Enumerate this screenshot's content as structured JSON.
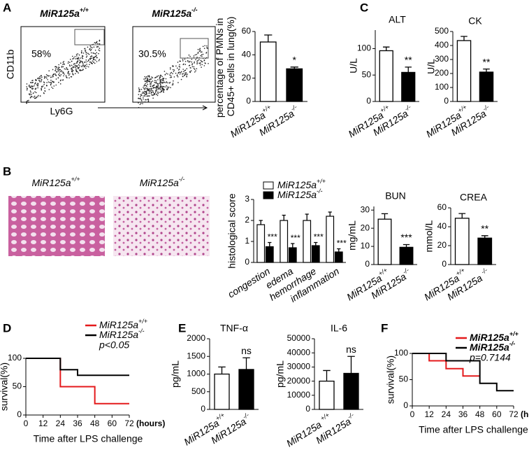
{
  "flow": {
    "panel": "A",
    "plots": [
      {
        "title": "MiR125a+/+",
        "gate": "58%"
      },
      {
        "title": "MiR125a-/-",
        "gate": "30.5%"
      }
    ],
    "ylabel": "CD11b",
    "xlabel": "Ly6G"
  },
  "histology": {
    "panel": "B",
    "images": [
      {
        "title": "MiR125a+/+"
      },
      {
        "title": "MiR125a-/-"
      }
    ]
  },
  "chart_data": [
    {
      "type": "bar",
      "ylabel": "percentage of PMNs in CD45+ cells in lung(%)",
      "categories": [
        "MiR125a+/+",
        "MiR125a-/-"
      ],
      "values": [
        51,
        28
      ],
      "errors": [
        6,
        1.5
      ],
      "colors": [
        "#ffffff",
        "#000000"
      ],
      "annotations": [
        null,
        "*"
      ],
      "ylim": [
        0,
        60
      ],
      "yticks": [
        0,
        20,
        40,
        60
      ]
    },
    {
      "type": "bar",
      "panel": "C",
      "title": "ALT",
      "ylabel": "U/L",
      "categories": [
        "MiR125a+/+",
        "MiR125a-/-"
      ],
      "values": [
        96,
        55
      ],
      "errors": [
        7,
        10
      ],
      "colors": [
        "#ffffff",
        "#000000"
      ],
      "annotations": [
        null,
        "**"
      ],
      "ylim": [
        0,
        135
      ],
      "yticks": [
        0,
        50,
        100
      ]
    },
    {
      "type": "bar",
      "title": "CK",
      "ylabel": "U/L",
      "categories": [
        "MiR125a+/+",
        "MiR125a-/-"
      ],
      "values": [
        435,
        210
      ],
      "errors": [
        30,
        22
      ],
      "colors": [
        "#ffffff",
        "#000000"
      ],
      "annotations": [
        null,
        "**"
      ],
      "ylim": [
        0,
        500
      ],
      "yticks": [
        0,
        100,
        200,
        300,
        400,
        500
      ]
    },
    {
      "type": "grouped_bar",
      "ylabel": "histological score",
      "categories": [
        "congestion",
        "edema",
        "hemorrhage",
        "inflammation"
      ],
      "series": [
        {
          "name": "MiR125a+/+",
          "color": "#ffffff",
          "values": [
            1.8,
            2.0,
            2.0,
            2.2
          ],
          "errors": [
            0.2,
            0.25,
            0.3,
            0.2
          ]
        },
        {
          "name": "MiR125a-/-",
          "color": "#000000",
          "values": [
            0.75,
            0.7,
            0.8,
            0.5
          ],
          "errors": [
            0.2,
            0.2,
            0.15,
            0.15
          ],
          "annotations": [
            "***",
            "***",
            "***",
            "***"
          ]
        }
      ],
      "ylim": [
        0,
        3
      ],
      "yticks": [
        0,
        1,
        2,
        3
      ]
    },
    {
      "type": "bar",
      "title": "BUN",
      "ylabel": "mg/mL",
      "categories": [
        "MiR125a+/+",
        "MiR125a-/-"
      ],
      "values": [
        25,
        9.5
      ],
      "errors": [
        3,
        1.5
      ],
      "colors": [
        "#ffffff",
        "#000000"
      ],
      "annotations": [
        null,
        "***"
      ],
      "ylim": [
        0,
        32
      ],
      "yticks": [
        0,
        10,
        20,
        30
      ]
    },
    {
      "type": "bar",
      "title": "CREA",
      "ylabel": "mmol/L",
      "categories": [
        "MiR125a+/+",
        "MiR125a -/-"
      ],
      "values": [
        49,
        28
      ],
      "errors": [
        5,
        2.5
      ],
      "colors": [
        "#ffffff",
        "#000000"
      ],
      "annotations": [
        null,
        "**"
      ],
      "ylim": [
        0,
        60
      ],
      "yticks": [
        0,
        20,
        40,
        60
      ]
    },
    {
      "type": "step",
      "panel": "D",
      "ylabel": "survival(%)",
      "xlabel": "Time after LPS challenge",
      "xunit": "(hours)",
      "series": [
        {
          "name": "MiR125a+/+",
          "color": "#e41a1c",
          "x": [
            0,
            24,
            24,
            48,
            48,
            72
          ],
          "values": [
            100,
            100,
            50,
            50,
            20,
            20
          ]
        },
        {
          "name": "MiR125a-/-",
          "color": "#000000",
          "x": [
            0,
            24,
            24,
            36,
            36,
            72
          ],
          "values": [
            100,
            100,
            80,
            80,
            70,
            70
          ]
        }
      ],
      "annotation": "p<0.05",
      "xlim": [
        0,
        72
      ],
      "xticks": [
        0,
        12,
        24,
        36,
        48,
        60,
        72
      ],
      "ylim": [
        0,
        100
      ],
      "yticks": [
        0,
        50,
        100
      ]
    },
    {
      "type": "bar",
      "panel": "E",
      "title": "TNF-α",
      "ylabel": "pg/mL",
      "categories": [
        "MiR125a+/+",
        "MiR125a-/-"
      ],
      "values": [
        1000,
        1130
      ],
      "errors": [
        200,
        330
      ],
      "colors": [
        "#ffffff",
        "#000000"
      ],
      "annotations": [
        null,
        "ns"
      ],
      "ylim": [
        0,
        2000
      ],
      "yticks": [
        0,
        500,
        1000,
        1500,
        2000
      ]
    },
    {
      "type": "bar",
      "title": "IL-6",
      "ylabel": "pg/mL",
      "categories": [
        "MiR125a +/+",
        "MiR125a-/-"
      ],
      "values": [
        20000,
        25500
      ],
      "errors": [
        7500,
        12000
      ],
      "colors": [
        "#ffffff",
        "#000000"
      ],
      "annotations": [
        null,
        "ns"
      ],
      "ylim": [
        0,
        50000
      ],
      "yticks": [
        0,
        10000,
        20000,
        30000,
        40000,
        50000
      ]
    },
    {
      "type": "step",
      "panel": "F",
      "ylabel": "survival(%)",
      "xlabel": "Time after LPS challenge",
      "xunit": "(hours)",
      "series": [
        {
          "name": "MiR125a+/+",
          "color": "#e41a1c",
          "x": [
            0,
            12,
            12,
            24,
            24,
            36,
            36,
            48
          ],
          "values": [
            100,
            100,
            86,
            86,
            71,
            71,
            57,
            57
          ]
        },
        {
          "name": "MiR125a-/-",
          "color": "#000000",
          "x": [
            0,
            24,
            24,
            48,
            48,
            60,
            60,
            72
          ],
          "values": [
            100,
            100,
            86,
            86,
            43,
            43,
            29,
            29
          ]
        }
      ],
      "annotation": "p=0.7144",
      "xlim": [
        0,
        72
      ],
      "xticks": [
        0,
        12,
        24,
        36,
        48,
        60,
        72
      ],
      "ylim": [
        0,
        100
      ],
      "yticks": [
        0,
        50,
        100
      ]
    }
  ]
}
